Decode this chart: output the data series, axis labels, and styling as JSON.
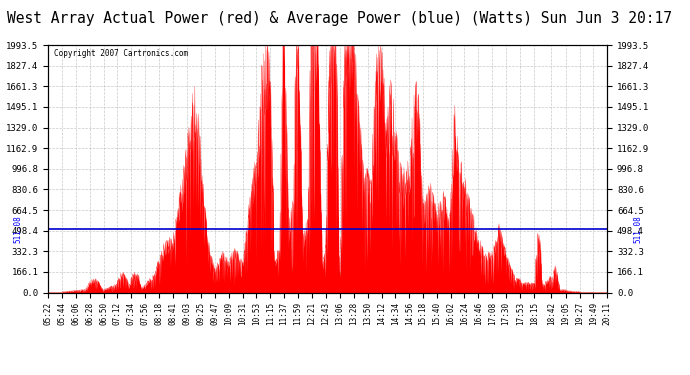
{
  "title": "West Array Actual Power (red) & Average Power (blue) (Watts) Sun Jun 3 20:17",
  "copyright": "Copyright 2007 Cartronics.com",
  "average_power": 511.08,
  "yticks": [
    0.0,
    166.1,
    332.3,
    498.4,
    664.5,
    830.6,
    996.8,
    1162.9,
    1329.0,
    1495.1,
    1661.3,
    1827.4,
    1993.5
  ],
  "ymax": 1993.5,
  "ymin": 0.0,
  "fill_color": "#FF0000",
  "line_color": "#FF0000",
  "avg_line_color": "#0000CC",
  "background_color": "#FFFFFF",
  "grid_color": "#BBBBBB",
  "title_fontsize": 10.5,
  "xtick_labels": [
    "05:22",
    "05:44",
    "06:06",
    "06:28",
    "06:50",
    "07:12",
    "07:34",
    "07:56",
    "08:18",
    "08:41",
    "09:03",
    "09:25",
    "09:47",
    "10:09",
    "10:31",
    "10:53",
    "11:15",
    "11:37",
    "11:59",
    "12:21",
    "12:43",
    "13:06",
    "13:28",
    "13:50",
    "14:12",
    "14:34",
    "14:56",
    "15:18",
    "15:40",
    "16:02",
    "16:24",
    "16:46",
    "17:08",
    "17:30",
    "17:53",
    "18:15",
    "18:42",
    "19:05",
    "19:27",
    "19:49",
    "20:11"
  ]
}
